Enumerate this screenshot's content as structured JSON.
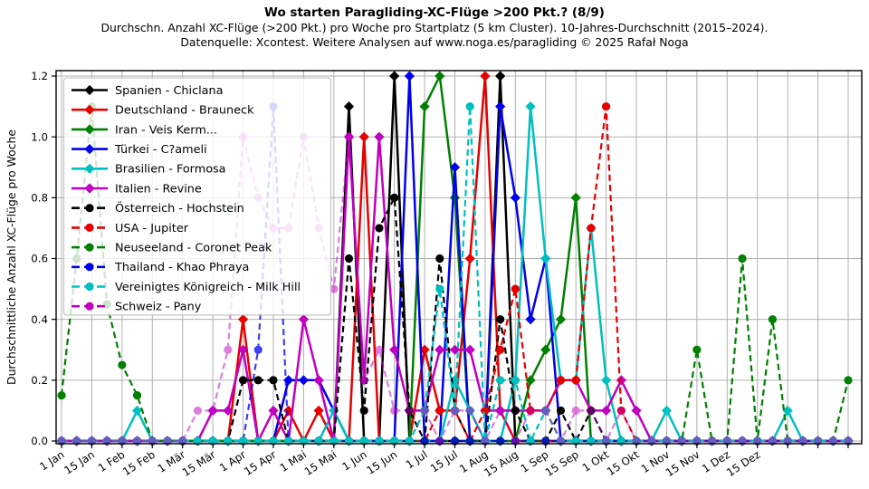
{
  "header": {
    "title": "Wo starten Paragliding-XC-Flüge >200 Pkt.? (8/9)",
    "subtitle1": "Durchschn. Anzahl XC-Flüge (>200 Pkt.) pro Woche pro Startplatz (5 km Cluster). 10-Jahres-Durchschnitt (2015–2024).",
    "subtitle2": "Datenquelle: Xcontest. Weitere Analysen auf www.noga.es/paragliding © 2025 Rafał Noga"
  },
  "chart_data": {
    "type": "line",
    "title": "Wo starten Paragliding-XC-Flüge >200 Pkt.? (8/9)",
    "xlabel": "",
    "ylabel": "Durchschnittliche Anzahl XC-Flüge pro Woche",
    "x_unit": "week_of_year",
    "weeks_total": 53,
    "ylim": [
      0.0,
      1.22
    ],
    "yticks": [
      "0.0",
      "0.2",
      "0.4",
      "0.6",
      "0.8",
      "1.0",
      "1.2"
    ],
    "xtick_labels": [
      "1 Jan",
      "15 Jan",
      "1 Feb",
      "15 Feb",
      "1 Mär",
      "15 Mär",
      "1 Apr",
      "15 Apr",
      "1 Mai",
      "15 Mai",
      "1 Jun",
      "15 Jun",
      "1 Jul",
      "15 Jul",
      "1 Aug",
      "15 Aug",
      "1 Sep",
      "15 Sep",
      "1 Okt",
      "15 Okt",
      "1 Nov",
      "15 Nov",
      "1 Dez",
      "15 Dez"
    ],
    "grid": true,
    "legend_position": "upper-left",
    "note": "weeks not listed in values_by_week have value 0",
    "series": [
      {
        "name": "Spanien - Chiclana",
        "color": "#000000",
        "line": "solid",
        "marker": "diamond",
        "opacity": 1,
        "values_by_week": {
          "20": 1.1,
          "23": 1.2,
          "30": 1.2
        }
      },
      {
        "name": "Deutschland - Brauneck",
        "color": "#e60000",
        "line": "solid",
        "marker": "diamond",
        "opacity": 1,
        "values_by_week": {
          "13": 0.4,
          "16": 0.1,
          "18": 0.1,
          "21": 1.0,
          "25": 0.3,
          "26": 0.1,
          "27": 0.1,
          "28": 0.6,
          "29": 1.2,
          "30": 0.1
        }
      },
      {
        "name": "Iran - Veis Kerm...",
        "color": "#008000",
        "line": "solid",
        "marker": "diamond",
        "opacity": 1,
        "values_by_week": {
          "25": 1.1,
          "26": 1.2,
          "27": 0.8,
          "32": 0.2,
          "33": 0.3,
          "34": 0.4,
          "35": 0.8
        }
      },
      {
        "name": "Türkei - C?ameli",
        "color": "#0000ee",
        "line": "solid",
        "marker": "diamond",
        "opacity": 1,
        "values_by_week": {
          "16": 0.2,
          "17": 0.2,
          "18": 0.2,
          "19": 0.1,
          "24": 1.2,
          "27": 0.9,
          "30": 1.1,
          "31": 0.8,
          "32": 0.4,
          "33": 0.6
        }
      },
      {
        "name": "Brasilien - Formosa",
        "color": "#00bfbf",
        "line": "solid",
        "marker": "diamond",
        "opacity": 1,
        "values_by_week": {
          "6": 0.1,
          "19": 0.1,
          "27": 0.2,
          "28": 0.1,
          "31": 0.2,
          "32": 1.1,
          "33": 0.6,
          "34": 0.2,
          "35": 0.2,
          "36": 0.7,
          "37": 0.2,
          "41": 0.1,
          "49": 0.1
        }
      },
      {
        "name": "Italien - Revine",
        "color": "#bf00bf",
        "line": "solid",
        "marker": "diamond",
        "opacity": 1,
        "values_by_week": {
          "11": 0.1,
          "12": 0.1,
          "13": 0.3,
          "15": 0.1,
          "17": 0.4,
          "18": 0.2,
          "20": 1.0,
          "21": 0.2,
          "22": 1.0,
          "23": 0.3,
          "24": 0.1,
          "25": 0.1,
          "26": 0.3,
          "27": 0.3,
          "28": 0.3,
          "29": 0.1,
          "30": 0.1,
          "31": 0.1,
          "32": 0.1,
          "33": 0.1,
          "34": 0.2,
          "35": 0.2,
          "36": 0.1,
          "37": 0.1,
          "38": 0.2,
          "39": 0.1
        }
      },
      {
        "name": "Österreich - Hochstein",
        "color": "#000000",
        "line": "dashed",
        "marker": "circle",
        "opacity": 1,
        "values_by_week": {
          "13": 0.2,
          "14": 0.2,
          "15": 0.2,
          "20": 0.6,
          "21": 0.1,
          "22": 0.7,
          "23": 0.8,
          "24": 0.1,
          "26": 0.6,
          "27": 0.1,
          "30": 0.4,
          "31": 0.1,
          "34": 0.1,
          "36": 0.1
        }
      },
      {
        "name": "USA - Jupiter",
        "color": "#e60000",
        "line": "dashed",
        "marker": "circle",
        "opacity": 1,
        "values_by_week": {
          "26": 0.1,
          "27": 0.1,
          "29": 0.1,
          "30": 0.3,
          "31": 0.5,
          "32": 0.1,
          "33": 0.1,
          "34": 0.2,
          "35": 0.2,
          "36": 0.7,
          "37": 1.1,
          "38": 0.1
        }
      },
      {
        "name": "Neuseeland - Coronet Peak",
        "color": "#008000",
        "line": "dashed",
        "marker": "circle",
        "opacity": 1,
        "values_by_week": {
          "1": 0.15,
          "2": 0.6,
          "3": 1.1,
          "4": 0.45,
          "5": 0.25,
          "6": 0.15,
          "43": 0.3,
          "46": 0.6,
          "48": 0.4,
          "53": 0.2
        }
      },
      {
        "name": "Thailand - Khao Phraya",
        "color": "#0000ee",
        "line": "dashed",
        "marker": "circle",
        "opacity": 0.75,
        "values_by_week": {
          "14": 0.3,
          "15": 1.1
        }
      },
      {
        "name": "Vereinigtes Königreich - Milk Hill",
        "color": "#00bfbf",
        "line": "dashed",
        "marker": "circle",
        "opacity": 1,
        "values_by_week": {
          "25": 0.1,
          "26": 0.5,
          "27": 0.1,
          "28": 1.1,
          "30": 0.2,
          "31": 0.2,
          "33": 0.1
        }
      },
      {
        "name": "Schweiz - Pany",
        "color": "#bf00bf",
        "line": "dashed",
        "marker": "circle",
        "opacity": 0.5,
        "values_by_week": {
          "10": 0.1,
          "11": 0.1,
          "12": 0.3,
          "13": 1.0,
          "14": 0.8,
          "15": 0.7,
          "16": 0.7,
          "17": 1.0,
          "18": 0.7,
          "19": 0.5,
          "20": 1.0,
          "21": 0.2,
          "22": 0.3,
          "23": 0.1,
          "24": 0.1,
          "25": 0.1,
          "27": 0.1,
          "28": 0.1,
          "30": 0.1,
          "32": 0.1,
          "33": 0.1,
          "35": 0.1,
          "36": 0.1,
          "38": 0.1
        }
      }
    ]
  }
}
